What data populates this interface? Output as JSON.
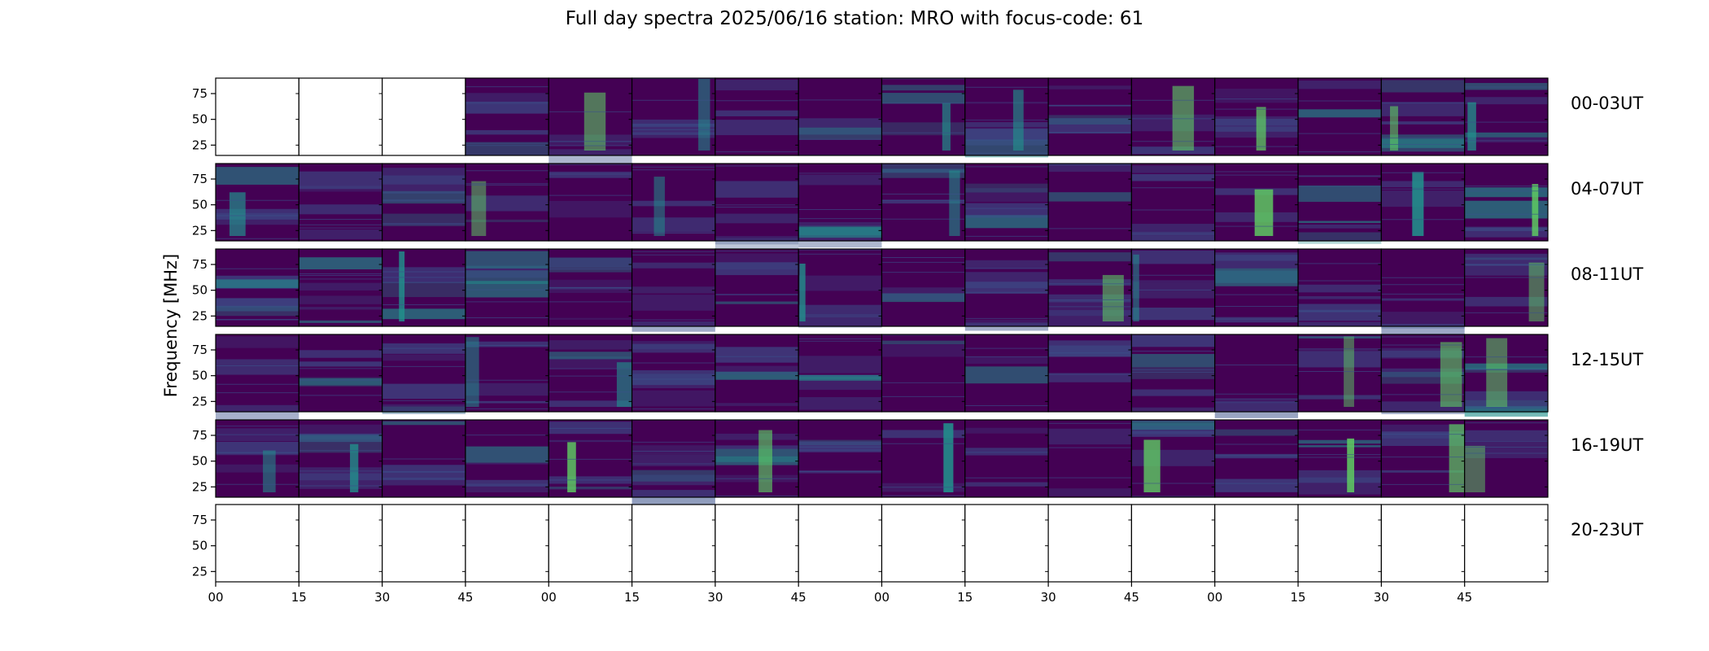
{
  "chart_data": {
    "type": "heatmap",
    "title": "Full day spectra 2025/06/16 station: MRO with focus-code: 61",
    "ylabel": "Frequency [MHz]",
    "xlabel": "",
    "ylim": [
      15,
      90
    ],
    "yticks": [
      25,
      50,
      75
    ],
    "xticks": [
      "00",
      "15",
      "30",
      "45",
      "00",
      "15",
      "30",
      "45",
      "00",
      "15",
      "30",
      "45",
      "00",
      "15",
      "30",
      "45"
    ],
    "colormap": "viridis",
    "rows": [
      {
        "label": "00-03UT",
        "panels_with_data": 13,
        "empty_panels_start": 3
      },
      {
        "label": "04-07UT",
        "panels_with_data": 16,
        "empty_panels_start": 0
      },
      {
        "label": "08-11UT",
        "panels_with_data": 16,
        "empty_panels_start": 0
      },
      {
        "label": "12-15UT",
        "panels_with_data": 16,
        "empty_panels_start": 0
      },
      {
        "label": "16-19UT",
        "panels_with_data": 16,
        "empty_panels_start": 0
      },
      {
        "label": "20-23UT",
        "panels_with_data": 0,
        "empty_panels_start": 16
      }
    ],
    "panels_per_row": 16,
    "colors": {
      "background": "#440154",
      "mid": "#3b528b",
      "teal": "#21918c",
      "green": "#5ec962"
    }
  }
}
